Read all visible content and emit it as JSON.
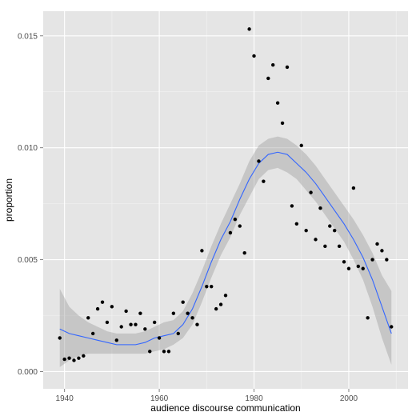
{
  "chart_data": {
    "type": "scatter",
    "title": "",
    "xlabel": "audience discourse communication",
    "ylabel": "proportion",
    "xlim": [
      1935.5,
      2012.5
    ],
    "ylim": [
      -0.00077,
      0.0161
    ],
    "x_ticks": [
      1940,
      1960,
      1980,
      2000
    ],
    "x_tick_labels": [
      "1940",
      "1960",
      "1980",
      "2000"
    ],
    "y_ticks": [
      0.0,
      0.005,
      0.01,
      0.015
    ],
    "y_tick_labels": [
      "0.000",
      "0.005",
      "0.010",
      "0.015"
    ],
    "grid": true,
    "legend": "none",
    "colors": {
      "panel_background": "#e5e5e5",
      "grid_major": "#ffffff",
      "grid_minor": "#f2f2f2",
      "points": "#000000",
      "smooth_line": "#3366ff",
      "ribbon": "#999999"
    },
    "points": {
      "x": [
        1939,
        1940,
        1941,
        1942,
        1943,
        1944,
        1945,
        1946,
        1947,
        1948,
        1949,
        1950,
        1951,
        1952,
        1953,
        1954,
        1955,
        1956,
        1957,
        1958,
        1959,
        1960,
        1961,
        1962,
        1963,
        1964,
        1965,
        1966,
        1967,
        1968,
        1969,
        1970,
        1971,
        1972,
        1973,
        1974,
        1975,
        1976,
        1977,
        1978,
        1979,
        1980,
        1981,
        1982,
        1983,
        1984,
        1985,
        1986,
        1987,
        1988,
        1989,
        1990,
        1991,
        1992,
        1993,
        1994,
        1995,
        1996,
        1997,
        1998,
        1999,
        2000,
        2001,
        2002,
        2003,
        2004,
        2005,
        2006,
        2007,
        2008,
        2009
      ],
      "y": [
        0.0015,
        0.00055,
        0.0006,
        0.0005,
        0.0006,
        0.0007,
        0.0024,
        0.0017,
        0.0028,
        0.0031,
        0.0022,
        0.0029,
        0.0014,
        0.002,
        0.0027,
        0.0021,
        0.0021,
        0.0026,
        0.0019,
        0.0009,
        0.0022,
        0.0015,
        0.0009,
        0.0009,
        0.0026,
        0.0017,
        0.0031,
        0.0026,
        0.0024,
        0.0021,
        0.0054,
        0.0038,
        0.0038,
        0.0028,
        0.003,
        0.0034,
        0.0062,
        0.0068,
        0.0065,
        0.0053,
        0.0153,
        0.0141,
        0.0094,
        0.0085,
        0.0131,
        0.0137,
        0.012,
        0.0111,
        0.0136,
        0.0074,
        0.0066,
        0.0101,
        0.0063,
        0.008,
        0.0059,
        0.0073,
        0.0056,
        0.0065,
        0.0063,
        0.0056,
        0.0049,
        0.0046,
        0.0082,
        0.0047,
        0.0046,
        0.0024,
        0.005,
        0.0057,
        0.0054,
        0.005,
        0.002
      ]
    },
    "smooth": {
      "x": [
        1939,
        1941,
        1943,
        1945,
        1947,
        1949,
        1951,
        1953,
        1955,
        1957,
        1959,
        1961,
        1963,
        1965,
        1967,
        1969,
        1971,
        1973,
        1975,
        1977,
        1979,
        1981,
        1983,
        1985,
        1987,
        1989,
        1991,
        1993,
        1995,
        1997,
        1999,
        2001,
        2003,
        2005,
        2007,
        2009
      ],
      "y": [
        0.0019,
        0.0017,
        0.0016,
        0.0015,
        0.0014,
        0.0013,
        0.0012,
        0.0012,
        0.0012,
        0.0013,
        0.0015,
        0.0016,
        0.0017,
        0.0021,
        0.0028,
        0.0038,
        0.0049,
        0.0059,
        0.0067,
        0.0077,
        0.0086,
        0.0093,
        0.0097,
        0.0098,
        0.0097,
        0.0093,
        0.0089,
        0.0084,
        0.0078,
        0.0072,
        0.0066,
        0.0059,
        0.0051,
        0.0041,
        0.0029,
        0.0017
      ],
      "lower": [
        0.0002,
        0.0005,
        0.0007,
        0.0008,
        0.0008,
        0.0008,
        0.0008,
        0.0008,
        0.0008,
        0.0008,
        0.0009,
        0.001,
        0.0012,
        0.0015,
        0.0021,
        0.0031,
        0.0042,
        0.0052,
        0.006,
        0.007,
        0.0078,
        0.0086,
        0.009,
        0.0091,
        0.0089,
        0.0086,
        0.0081,
        0.0076,
        0.007,
        0.0064,
        0.0058,
        0.005,
        0.0041,
        0.0029,
        0.0015,
        0.0003
      ],
      "upper": [
        0.0037,
        0.0029,
        0.0025,
        0.0022,
        0.002,
        0.0018,
        0.0017,
        0.0017,
        0.0017,
        0.0018,
        0.002,
        0.0022,
        0.0023,
        0.0027,
        0.0035,
        0.0045,
        0.0056,
        0.0066,
        0.0075,
        0.0084,
        0.0094,
        0.0101,
        0.0104,
        0.0105,
        0.0104,
        0.0101,
        0.0097,
        0.0092,
        0.0086,
        0.008,
        0.0074,
        0.0068,
        0.0061,
        0.0053,
        0.0043,
        0.0036
      ]
    }
  }
}
